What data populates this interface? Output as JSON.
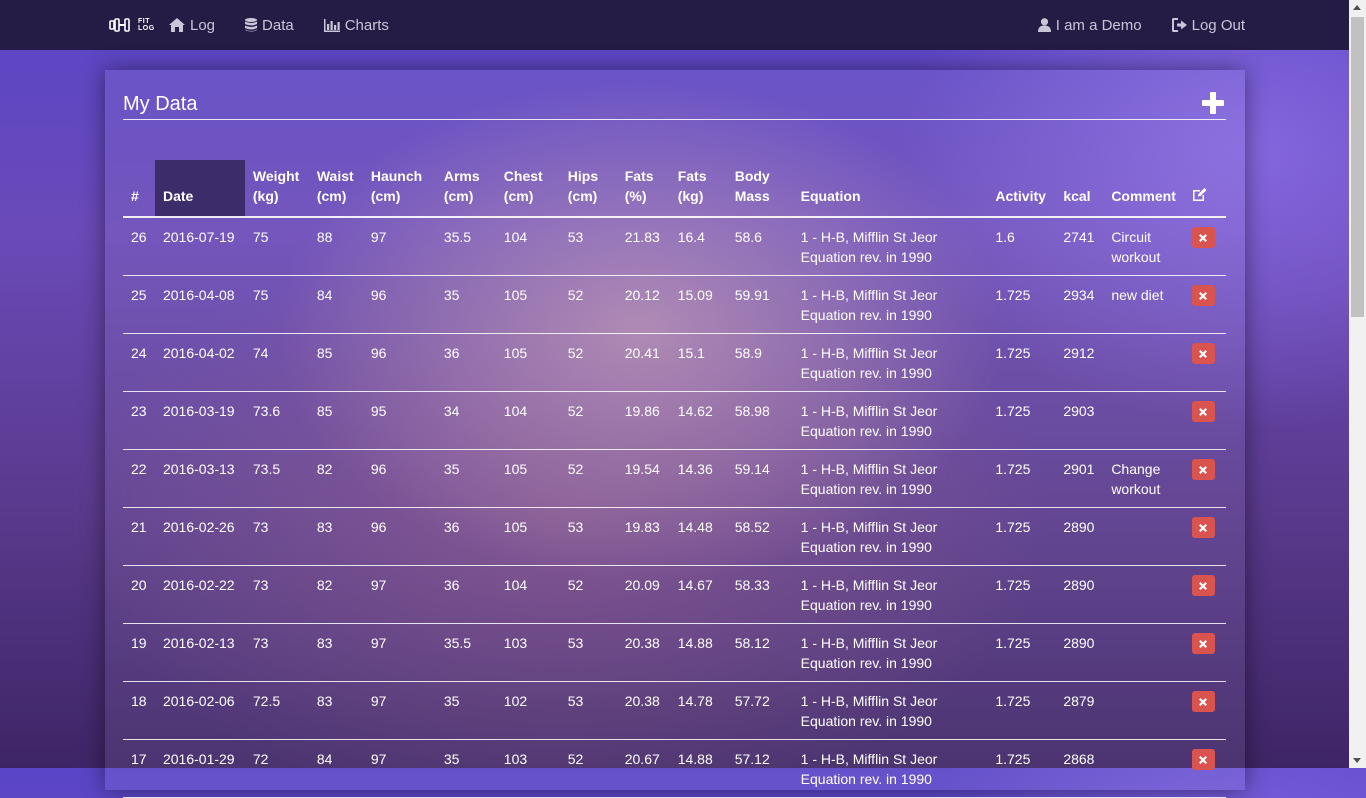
{
  "nav": {
    "brand": {
      "icon": "dumbbell-icon",
      "line1": "FIT",
      "line2": "LOG"
    },
    "links": [
      {
        "label": "Log",
        "icon": "home-icon"
      },
      {
        "label": "Data",
        "icon": "database-icon"
      },
      {
        "label": "Charts",
        "icon": "bar-chart-icon"
      }
    ],
    "user": {
      "label": "I am a Demo",
      "icon": "user-icon"
    },
    "logout": {
      "label": "Log Out",
      "icon": "logout-icon"
    }
  },
  "panel": {
    "title": "My Data",
    "add_icon": "plus-icon"
  },
  "table": {
    "headers": [
      "#",
      "Date",
      "Weight (kg)",
      "Waist (cm)",
      "Haunch (cm)",
      "Arms (cm)",
      "Chest (cm)",
      "Hips (cm)",
      "Fats (%)",
      "Fats (kg)",
      "Body Mass",
      "Equation",
      "Activity",
      "kcal",
      "Comment"
    ],
    "header_lines": [
      [
        "#",
        ""
      ],
      [
        "Date",
        ""
      ],
      [
        "Weight",
        "(kg)"
      ],
      [
        "Waist",
        "(cm)"
      ],
      [
        "Haunch",
        "(cm)"
      ],
      [
        "Arms",
        "(cm)"
      ],
      [
        "Chest",
        "(cm)"
      ],
      [
        "Hips",
        "(cm)"
      ],
      [
        "Fats",
        "(%)"
      ],
      [
        "Fats",
        "(kg)"
      ],
      [
        "Body",
        "Mass"
      ],
      [
        "Equation",
        ""
      ],
      [
        "Activity",
        ""
      ],
      [
        "kcal",
        ""
      ],
      [
        "Comment",
        ""
      ]
    ],
    "edit_icon": "edit-icon",
    "delete_icon": "close-icon",
    "sorted_column": "Date",
    "rows": [
      [
        "26",
        "2016-07-19",
        "75",
        "88",
        "97",
        "35.5",
        "104",
        "53",
        "21.83",
        "16.4",
        "58.6",
        "1 - H-B, Mifflin St Jeor Equation rev. in 1990",
        "1.6",
        "2741",
        "Circuit workout"
      ],
      [
        "25",
        "2016-04-08",
        "75",
        "84",
        "96",
        "35",
        "105",
        "52",
        "20.12",
        "15.09",
        "59.91",
        "1 - H-B, Mifflin St Jeor Equation rev. in 1990",
        "1.725",
        "2934",
        "new diet"
      ],
      [
        "24",
        "2016-04-02",
        "74",
        "85",
        "96",
        "36",
        "105",
        "52",
        "20.41",
        "15.1",
        "58.9",
        "1 - H-B, Mifflin St Jeor Equation rev. in 1990",
        "1.725",
        "2912",
        ""
      ],
      [
        "23",
        "2016-03-19",
        "73.6",
        "85",
        "95",
        "34",
        "104",
        "52",
        "19.86",
        "14.62",
        "58.98",
        "1 - H-B, Mifflin St Jeor Equation rev. in 1990",
        "1.725",
        "2903",
        ""
      ],
      [
        "22",
        "2016-03-13",
        "73.5",
        "82",
        "96",
        "35",
        "105",
        "52",
        "19.54",
        "14.36",
        "59.14",
        "1 - H-B, Mifflin St Jeor Equation rev. in 1990",
        "1.725",
        "2901",
        "Change workout"
      ],
      [
        "21",
        "2016-02-26",
        "73",
        "83",
        "96",
        "36",
        "105",
        "53",
        "19.83",
        "14.48",
        "58.52",
        "1 - H-B, Mifflin St Jeor Equation rev. in 1990",
        "1.725",
        "2890",
        ""
      ],
      [
        "20",
        "2016-02-22",
        "73",
        "82",
        "97",
        "36",
        "104",
        "52",
        "20.09",
        "14.67",
        "58.33",
        "1 - H-B, Mifflin St Jeor Equation rev. in 1990",
        "1.725",
        "2890",
        ""
      ],
      [
        "19",
        "2016-02-13",
        "73",
        "83",
        "97",
        "35.5",
        "103",
        "53",
        "20.38",
        "14.88",
        "58.12",
        "1 - H-B, Mifflin St Jeor Equation rev. in 1990",
        "1.725",
        "2890",
        ""
      ],
      [
        "18",
        "2016-02-06",
        "72.5",
        "83",
        "97",
        "35",
        "102",
        "53",
        "20.38",
        "14.78",
        "57.72",
        "1 - H-B, Mifflin St Jeor Equation rev. in 1990",
        "1.725",
        "2879",
        ""
      ],
      [
        "17",
        "2016-01-29",
        "72",
        "84",
        "97",
        "35",
        "103",
        "52",
        "20.67",
        "14.88",
        "57.12",
        "1 - H-B, Mifflin St Jeor Equation rev. in 1990",
        "1.725",
        "2868",
        ""
      ]
    ]
  },
  "colors": {
    "navbar": "#241c45",
    "delete_button": "#d9534f",
    "sorted_header": "#3d2c6a"
  }
}
